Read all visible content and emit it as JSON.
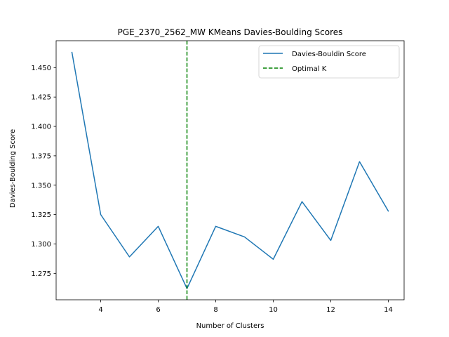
{
  "chart_data": {
    "type": "line",
    "title": "PGE_2370_2562_MW KMeans Davies-Boulding Scores",
    "xlabel": "Number of Clusters",
    "ylabel": "Davies-Boulding Score",
    "x": [
      3,
      4,
      5,
      6,
      7,
      8,
      9,
      10,
      11,
      12,
      13,
      14
    ],
    "series": [
      {
        "name": "Davies-Bouldin Score",
        "color": "#1f77b4",
        "values": [
          1.463,
          1.325,
          1.289,
          1.315,
          1.262,
          1.315,
          1.306,
          1.287,
          1.336,
          1.303,
          1.37,
          1.328
        ]
      }
    ],
    "optimal": {
      "name": "Optimal K",
      "x": 7,
      "color": "#008000",
      "style": "dashed"
    },
    "xlim": [
      2.45,
      14.55
    ],
    "ylim": [
      1.2525,
      1.4729
    ],
    "xticks": [
      4,
      6,
      8,
      10,
      12,
      14
    ],
    "xtick_labels": [
      "4",
      "6",
      "8",
      "10",
      "12",
      "14"
    ],
    "yticks": [
      1.275,
      1.3,
      1.325,
      1.35,
      1.375,
      1.4,
      1.425,
      1.45
    ],
    "ytick_labels": [
      "1.275",
      "1.300",
      "1.325",
      "1.350",
      "1.375",
      "1.400",
      "1.425",
      "1.450"
    ],
    "grid": false,
    "legend_position": "top-right"
  }
}
